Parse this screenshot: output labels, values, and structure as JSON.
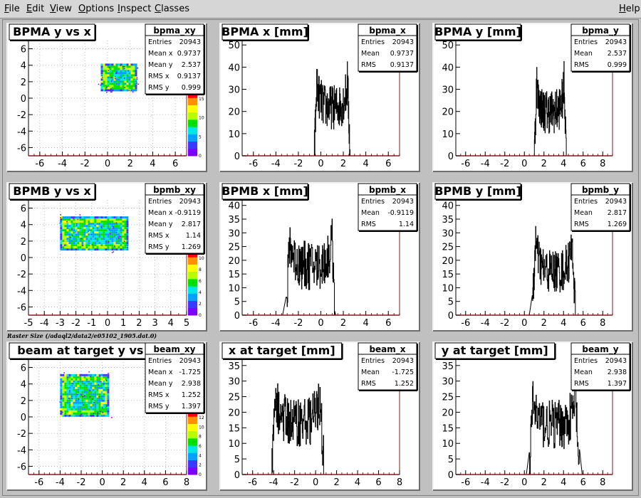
{
  "menu": {
    "file": {
      "m": "F",
      "r": "ile"
    },
    "edit": {
      "m": "E",
      "r": "dit"
    },
    "view": {
      "m": "V",
      "r": "iew"
    },
    "options": {
      "m": "O",
      "r": "ptions"
    },
    "inspect": {
      "m": "I",
      "r": "nspect"
    },
    "classes": {
      "m": "C",
      "r": "lasses"
    },
    "help": {
      "m": "H",
      "r": "elp"
    }
  },
  "caption": "Raster Size (/adaql2/data2/e05102_1905.dat.0)",
  "colors": {
    "axis": "#8b1a1a",
    "grid": "#aaaaaa",
    "hist": "#000000",
    "pad_bg": "#ffffff",
    "palette": [
      "#7a00ff",
      "#3a3aff",
      "#00a0ff",
      "#00e6e6",
      "#00e000",
      "#b4ff00",
      "#ffff00",
      "#ff9000",
      "#ff0000"
    ]
  },
  "chart_data": [
    {
      "type": "heatmap",
      "name": "bpma_xy",
      "title": "BPMA y vs x",
      "xlim": [
        -7,
        7
      ],
      "ylim": [
        -7,
        7
      ],
      "xticks": [
        -6,
        -4,
        -2,
        0,
        2,
        4,
        6
      ],
      "yticks": [
        -6,
        -4,
        -2,
        0,
        2,
        4,
        6
      ],
      "grid": true,
      "legend": "top-right",
      "region": {
        "x": [
          -0.6,
          2.5
        ],
        "y": [
          1.0,
          4.2
        ]
      },
      "palette_ticks": [
        0,
        5,
        10,
        15
      ],
      "stats": [
        [
          "Entries",
          "20943"
        ],
        [
          "Mean x",
          "0.9737"
        ],
        [
          "Mean y",
          "2.537"
        ],
        [
          "RMS x",
          "0.9137"
        ],
        [
          "RMS y",
          "0.999"
        ]
      ]
    },
    {
      "type": "bar",
      "name": "bpma_x",
      "title": "BPMA x [mm]",
      "xlim": [
        -7,
        7
      ],
      "ylim": [
        0,
        52
      ],
      "xticks": [
        -6,
        -4,
        -2,
        0,
        2,
        4,
        6
      ],
      "yticks": [
        0,
        10,
        20,
        30,
        40,
        50
      ],
      "grid": false,
      "legend": "top-right",
      "dist": {
        "lo": -0.6,
        "hi": 2.6,
        "edge": 40,
        "mid": 22,
        "noise": 10
      },
      "stats": [
        [
          "Entries",
          "20943"
        ],
        [
          "Mean",
          "0.9737"
        ],
        [
          "RMS",
          "0.9137"
        ]
      ]
    },
    {
      "type": "bar",
      "name": "bpma_y",
      "title": "BPMA y [mm]",
      "xlim": [
        -7,
        9
      ],
      "ylim": [
        0,
        52
      ],
      "xticks": [
        -6,
        -4,
        -2,
        0,
        2,
        4,
        6,
        8
      ],
      "yticks": [
        0,
        10,
        20,
        30,
        40,
        50
      ],
      "grid": false,
      "legend": "top-right",
      "dist": {
        "lo": 1.0,
        "hi": 4.3,
        "edge": 39,
        "mid": 20,
        "noise": 10
      },
      "stats": [
        [
          "Entries",
          "20943"
        ],
        [
          "Mean",
          "2.537"
        ],
        [
          "RMS",
          "0.999"
        ]
      ]
    },
    {
      "type": "heatmap",
      "name": "bpmb_xy",
      "title": "BPMB y vs x",
      "xlim": [
        -5,
        5
      ],
      "ylim": [
        -7,
        7
      ],
      "xticks": [
        -5,
        -4,
        -3,
        -2,
        -1,
        0,
        1,
        2,
        3,
        4,
        5
      ],
      "yticks": [
        -6,
        -4,
        -2,
        0,
        2,
        4,
        6
      ],
      "grid": true,
      "legend": "top-right",
      "region": {
        "x": [
          -3.0,
          1.2
        ],
        "y": [
          1.0,
          5.0
        ]
      },
      "palette_ticks": [
        0,
        2,
        4,
        6,
        8,
        10
      ],
      "stats": [
        [
          "Entries",
          "20943"
        ],
        [
          "Mean x",
          "-0.9119"
        ],
        [
          "Mean y",
          "2.817"
        ],
        [
          "RMS x",
          "1.14"
        ],
        [
          "RMS y",
          "1.269"
        ]
      ]
    },
    {
      "type": "bar",
      "name": "bpmb_x",
      "title": "BPMB x [mm]",
      "xlim": [
        -7,
        7
      ],
      "ylim": [
        0,
        42
      ],
      "xticks": [
        -6,
        -4,
        -2,
        0,
        2,
        4,
        6
      ],
      "yticks": [
        0,
        5,
        10,
        15,
        20,
        25,
        30,
        35,
        40
      ],
      "grid": false,
      "legend": "top-right",
      "dist": {
        "lo": -3.1,
        "hi": 1.3,
        "edge": 33,
        "mid": 18,
        "noise": 9
      },
      "stats": [
        [
          "Entries",
          "20943"
        ],
        [
          "Mean",
          "-0.9119"
        ],
        [
          "RMS",
          "1.14"
        ]
      ]
    },
    {
      "type": "bar",
      "name": "bpmb_y",
      "title": "BPMB y [mm]",
      "xlim": [
        -7,
        9
      ],
      "ylim": [
        0,
        42
      ],
      "xticks": [
        -6,
        -4,
        -2,
        0,
        2,
        4,
        6,
        8
      ],
      "yticks": [
        0,
        5,
        10,
        15,
        20,
        25,
        30,
        35,
        40
      ],
      "grid": false,
      "legend": "top-right",
      "dist": {
        "lo": 0.8,
        "hi": 5.2,
        "edge": 33,
        "mid": 16,
        "noise": 8
      },
      "stats": [
        [
          "Entries",
          "20943"
        ],
        [
          "Mean",
          "2.817"
        ],
        [
          "RMS",
          "1.269"
        ]
      ]
    },
    {
      "type": "heatmap",
      "name": "beam_xy",
      "title": "beam at target y vs x",
      "xlim": [
        -7,
        8
      ],
      "ylim": [
        -7,
        7
      ],
      "xticks": [
        -6,
        -4,
        -2,
        0,
        2,
        4,
        6,
        8
      ],
      "yticks": [
        -6,
        -4,
        -2,
        0,
        2,
        4,
        6
      ],
      "grid": true,
      "legend": "top-right",
      "region": {
        "x": [
          -4.0,
          0.6
        ],
        "y": [
          0.2,
          5.2
        ]
      },
      "palette_ticks": [
        0,
        2,
        4,
        6,
        8,
        10,
        12
      ],
      "stats": [
        [
          "Entries",
          "20943"
        ],
        [
          "Mean x",
          "-1.725"
        ],
        [
          "Mean y",
          "2.938"
        ],
        [
          "RMS x",
          "1.252"
        ],
        [
          "RMS y",
          "1.397"
        ]
      ]
    },
    {
      "type": "bar",
      "name": "beam_x",
      "title": "x at target [mm]",
      "xlim": [
        -7,
        8
      ],
      "ylim": [
        0,
        37
      ],
      "xticks": [
        -6,
        -4,
        -2,
        0,
        2,
        4,
        6,
        8
      ],
      "yticks": [
        0,
        5,
        10,
        15,
        20,
        25,
        30,
        35
      ],
      "grid": false,
      "legend": "top-right",
      "dist": {
        "lo": -4.2,
        "hi": 0.8,
        "edge": 30,
        "mid": 17,
        "noise": 8
      },
      "stats": [
        [
          "Entries",
          "20943"
        ],
        [
          "Mean",
          "-1.725"
        ],
        [
          "RMS",
          "1.252"
        ]
      ]
    },
    {
      "type": "bar",
      "name": "beam_y",
      "title": "y at target [mm]",
      "xlim": [
        -7,
        9
      ],
      "ylim": [
        0,
        37
      ],
      "xticks": [
        -6,
        -4,
        -2,
        0,
        2,
        4,
        6,
        8
      ],
      "yticks": [
        0,
        5,
        10,
        15,
        20,
        25,
        30,
        35
      ],
      "grid": false,
      "legend": "top-right",
      "dist": {
        "lo": 0.5,
        "hi": 5.6,
        "edge": 30,
        "mid": 16,
        "noise": 8
      },
      "stats": [
        [
          "Entries",
          "20943"
        ],
        [
          "Mean",
          "2.938"
        ],
        [
          "RMS",
          "1.397"
        ]
      ]
    }
  ]
}
